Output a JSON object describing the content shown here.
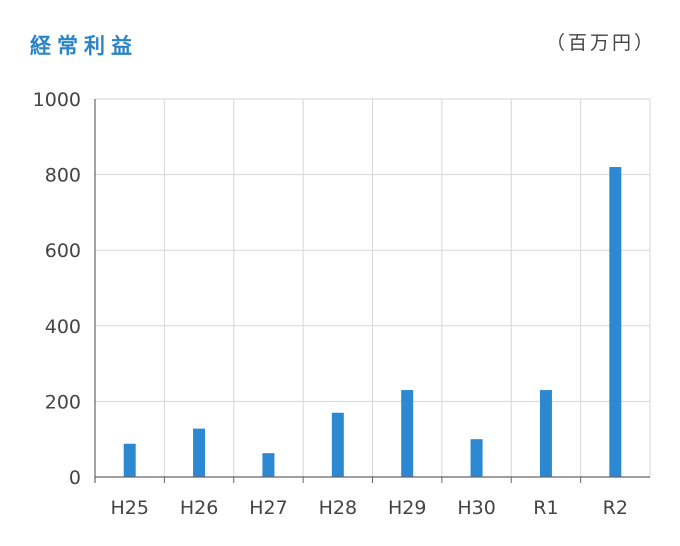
{
  "header": {
    "title": "経常利益",
    "unit": "（百万円）"
  },
  "colors": {
    "accent": "#2a84c6",
    "bar": "#2b88d1",
    "grid": "#d6d6d6",
    "axis": "#666666"
  },
  "chart_data": {
    "type": "bar",
    "title": "経常利益",
    "unit": "（百万円）",
    "categories": [
      "H25",
      "H26",
      "H27",
      "H28",
      "H29",
      "H30",
      "R1",
      "R2"
    ],
    "values": [
      88,
      128,
      63,
      170,
      230,
      100,
      230,
      820
    ],
    "ylim": [
      0,
      1000
    ],
    "yticks": [
      0,
      200,
      400,
      600,
      800,
      1000
    ],
    "grid": true,
    "legend": "none"
  }
}
